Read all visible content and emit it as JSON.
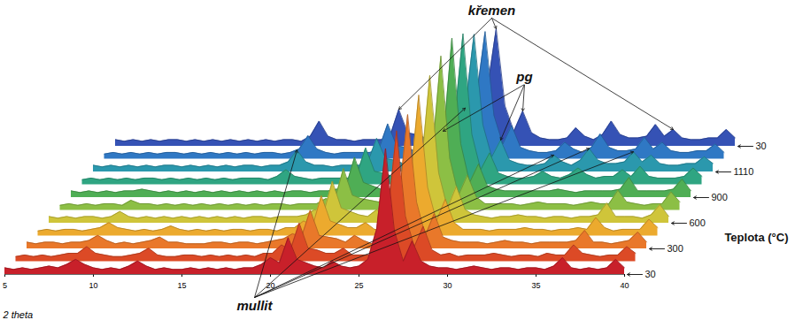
{
  "chart_data": {
    "type": "waterfall",
    "x_label": "2 theta",
    "depth_label": "Teplota (°C)",
    "xlim": [
      5,
      40
    ],
    "xticks": [
      5,
      10,
      15,
      20,
      25,
      30,
      35,
      40
    ],
    "ylim": [
      0,
      100
    ],
    "tick_labels": "x",
    "x": [
      5,
      5.5,
      6,
      6.5,
      7,
      7.5,
      8,
      8.5,
      9,
      9.5,
      10,
      10.5,
      11,
      11.5,
      12,
      12.5,
      13,
      13.5,
      14,
      14.5,
      15,
      15.5,
      16,
      16.5,
      17,
      17.5,
      18,
      18.5,
      19,
      19.5,
      20,
      20.5,
      21,
      21.5,
      22,
      22.5,
      23,
      23.5,
      24,
      24.5,
      25,
      25.5,
      26,
      26.5,
      27,
      27.5,
      28,
      28.5,
      29,
      29.5,
      30,
      30.5,
      31,
      31.5,
      32,
      32.5,
      33,
      33.5,
      34,
      34.5,
      35,
      35.5,
      36,
      36.5,
      37,
      37.5,
      38,
      38.5,
      39,
      39.5,
      40
    ],
    "series": [
      {
        "name": "30",
        "color": "#c8202a",
        "values": [
          4,
          3,
          4,
          3,
          4,
          5,
          4,
          6,
          9,
          6,
          4,
          3,
          4,
          3,
          5,
          8,
          5,
          3,
          4,
          3,
          3,
          4,
          3,
          4,
          3,
          4,
          3,
          4,
          4,
          6,
          10,
          7,
          22,
          9,
          7,
          5,
          4,
          8,
          5,
          4,
          5,
          9,
          27,
          75,
          26,
          8,
          20,
          8,
          5,
          4,
          4,
          3,
          4,
          5,
          4,
          3,
          4,
          4,
          3,
          4,
          4,
          3,
          5,
          10,
          4,
          3,
          4,
          3,
          4,
          9,
          4
        ]
      },
      {
        "name": null,
        "color": "#dc4a26",
        "values": [
          3,
          4,
          3,
          4,
          3,
          4,
          5,
          5,
          9,
          5,
          4,
          3,
          3,
          4,
          5,
          8,
          4,
          3,
          3,
          4,
          4,
          3,
          4,
          3,
          4,
          3,
          4,
          3,
          5,
          5,
          10,
          7,
          23,
          8,
          7,
          5,
          5,
          8,
          4,
          4,
          4,
          9,
          28,
          78,
          27,
          9,
          21,
          7,
          4,
          5,
          3,
          4,
          4,
          4,
          5,
          4,
          3,
          4,
          4,
          3,
          5,
          4,
          4,
          10,
          5,
          4,
          3,
          4,
          4,
          9,
          5
        ]
      },
      {
        "name": "300",
        "color": "#e9782a",
        "values": [
          4,
          3,
          4,
          4,
          3,
          4,
          4,
          5,
          8,
          5,
          3,
          4,
          3,
          4,
          5,
          7,
          4,
          4,
          3,
          3,
          3,
          4,
          4,
          3,
          4,
          4,
          3,
          4,
          5,
          6,
          9,
          7,
          23,
          8,
          7,
          6,
          4,
          8,
          5,
          3,
          4,
          9,
          29,
          80,
          28,
          8,
          21,
          7,
          5,
          4,
          4,
          4,
          3,
          4,
          5,
          4,
          4,
          3,
          4,
          4,
          4,
          4,
          5,
          11,
          4,
          4,
          3,
          4,
          5,
          10,
          4
        ]
      },
      {
        "name": null,
        "color": "#ecaa2e",
        "values": [
          3,
          4,
          3,
          4,
          4,
          3,
          4,
          5,
          8,
          5,
          4,
          3,
          4,
          3,
          4,
          6,
          4,
          3,
          4,
          3,
          4,
          3,
          4,
          4,
          3,
          4,
          4,
          3,
          5,
          5,
          9,
          6,
          24,
          9,
          7,
          5,
          5,
          8,
          4,
          4,
          5,
          10,
          30,
          84,
          29,
          9,
          22,
          8,
          4,
          4,
          4,
          3,
          4,
          4,
          4,
          5,
          4,
          4,
          3,
          4,
          4,
          5,
          4,
          11,
          5,
          3,
          4,
          4,
          4,
          10,
          5
        ]
      },
      {
        "name": "600",
        "color": "#cfc53a",
        "values": [
          4,
          3,
          4,
          3,
          4,
          4,
          3,
          4,
          7,
          4,
          3,
          4,
          3,
          4,
          3,
          4,
          3,
          4,
          3,
          4,
          3,
          4,
          3,
          4,
          4,
          3,
          4,
          4,
          4,
          5,
          8,
          6,
          25,
          9,
          7,
          5,
          4,
          8,
          5,
          4,
          4,
          10,
          31,
          88,
          30,
          9,
          22,
          8,
          5,
          4,
          3,
          4,
          4,
          5,
          4,
          4,
          3,
          4,
          4,
          3,
          4,
          4,
          5,
          12,
          4,
          4,
          4,
          3,
          5,
          11,
          4
        ]
      },
      {
        "name": null,
        "color": "#8cbf45",
        "values": [
          3,
          4,
          3,
          4,
          3,
          4,
          4,
          3,
          6,
          4,
          4,
          3,
          4,
          3,
          4,
          3,
          4,
          3,
          4,
          3,
          4,
          3,
          4,
          3,
          4,
          4,
          3,
          4,
          4,
          4,
          7,
          6,
          25,
          9,
          7,
          6,
          5,
          8,
          5,
          4,
          5,
          10,
          32,
          92,
          31,
          9,
          21,
          8,
          4,
          4,
          4,
          4,
          3,
          4,
          5,
          4,
          4,
          4,
          3,
          4,
          5,
          4,
          4,
          12,
          5,
          4,
          3,
          4,
          4,
          11,
          5
        ]
      },
      {
        "name": "900",
        "color": "#4fae55",
        "values": [
          4,
          3,
          4,
          3,
          4,
          3,
          4,
          4,
          5,
          4,
          3,
          4,
          3,
          4,
          3,
          4,
          3,
          4,
          3,
          4,
          3,
          4,
          3,
          4,
          3,
          4,
          4,
          3,
          4,
          4,
          5,
          6,
          24,
          9,
          7,
          5,
          5,
          8,
          4,
          4,
          4,
          10,
          33,
          95,
          32,
          9,
          20,
          7,
          5,
          4,
          4,
          4,
          4,
          4,
          4,
          5,
          4,
          3,
          4,
          4,
          4,
          4,
          5,
          12,
          4,
          4,
          4,
          4,
          5,
          11,
          4
        ]
      },
      {
        "name": null,
        "color": "#2fa582",
        "values": [
          3,
          4,
          3,
          4,
          3,
          4,
          3,
          4,
          4,
          3,
          4,
          3,
          4,
          3,
          4,
          3,
          4,
          3,
          4,
          4,
          4,
          3,
          5,
          9,
          5,
          4,
          3,
          4,
          4,
          4,
          4,
          6,
          22,
          8,
          7,
          5,
          5,
          8,
          4,
          4,
          5,
          12,
          36,
          90,
          30,
          9,
          19,
          7,
          5,
          4,
          4,
          5,
          8,
          5,
          4,
          6,
          10,
          6,
          4,
          5,
          5,
          9,
          5,
          11,
          5,
          4,
          4,
          4,
          5,
          10,
          5
        ]
      },
      {
        "name": "1110",
        "color": "#2b98ad",
        "values": [
          4,
          3,
          4,
          3,
          4,
          3,
          4,
          3,
          4,
          4,
          3,
          4,
          3,
          4,
          3,
          4,
          3,
          4,
          4,
          3,
          4,
          4,
          6,
          13,
          6,
          4,
          4,
          3,
          4,
          4,
          4,
          6,
          20,
          8,
          7,
          5,
          5,
          8,
          4,
          4,
          5,
          14,
          38,
          82,
          28,
          9,
          19,
          7,
          5,
          4,
          4,
          5,
          10,
          6,
          4,
          7,
          14,
          7,
          5,
          5,
          6,
          12,
          6,
          10,
          5,
          4,
          4,
          5,
          5,
          9,
          5
        ]
      },
      {
        "name": null,
        "color": "#2f78c4",
        "values": [
          3,
          4,
          3,
          4,
          3,
          4,
          3,
          4,
          4,
          3,
          4,
          3,
          4,
          3,
          4,
          3,
          4,
          3,
          4,
          4,
          3,
          4,
          6,
          14,
          6,
          4,
          3,
          4,
          4,
          4,
          4,
          6,
          21,
          8,
          7,
          5,
          5,
          8,
          4,
          4,
          5,
          15,
          36,
          76,
          26,
          9,
          20,
          7,
          5,
          4,
          4,
          5,
          10,
          6,
          4,
          7,
          15,
          7,
          5,
          5,
          6,
          13,
          6,
          10,
          5,
          4,
          4,
          5,
          5,
          9,
          4
        ]
      },
      {
        "name": "30",
        "color": "#3552b5",
        "values": [
          4,
          3,
          4,
          3,
          4,
          3,
          4,
          4,
          3,
          4,
          3,
          4,
          3,
          4,
          3,
          4,
          3,
          4,
          3,
          4,
          4,
          3,
          6,
          15,
          6,
          4,
          4,
          3,
          4,
          4,
          4,
          6,
          22,
          8,
          7,
          5,
          5,
          9,
          4,
          4,
          5,
          15,
          34,
          70,
          24,
          9,
          21,
          8,
          5,
          4,
          4,
          5,
          11,
          6,
          4,
          7,
          15,
          7,
          5,
          5,
          6,
          13,
          6,
          10,
          5,
          4,
          4,
          5,
          5,
          10,
          5
        ]
      }
    ],
    "annotations": [
      {
        "text": "křemen",
        "targets": [
          {
            "x": 21,
            "row": 10
          },
          {
            "x": 26.5,
            "row": 10
          },
          {
            "x": 36.5,
            "row": 10
          }
        ]
      },
      {
        "text": "pg",
        "targets": [
          {
            "x": 23.5,
            "row": 10
          },
          {
            "x": 28,
            "row": 8
          },
          {
            "x": 28,
            "row": 10
          }
        ]
      },
      {
        "text": "mullit",
        "targets": [
          {
            "x": 16.5,
            "row": 8
          },
          {
            "x": 26,
            "row": 8
          },
          {
            "x": 31,
            "row": 8
          },
          {
            "x": 33,
            "row": 8
          },
          {
            "x": 35.5,
            "row": 8
          }
        ]
      }
    ]
  }
}
